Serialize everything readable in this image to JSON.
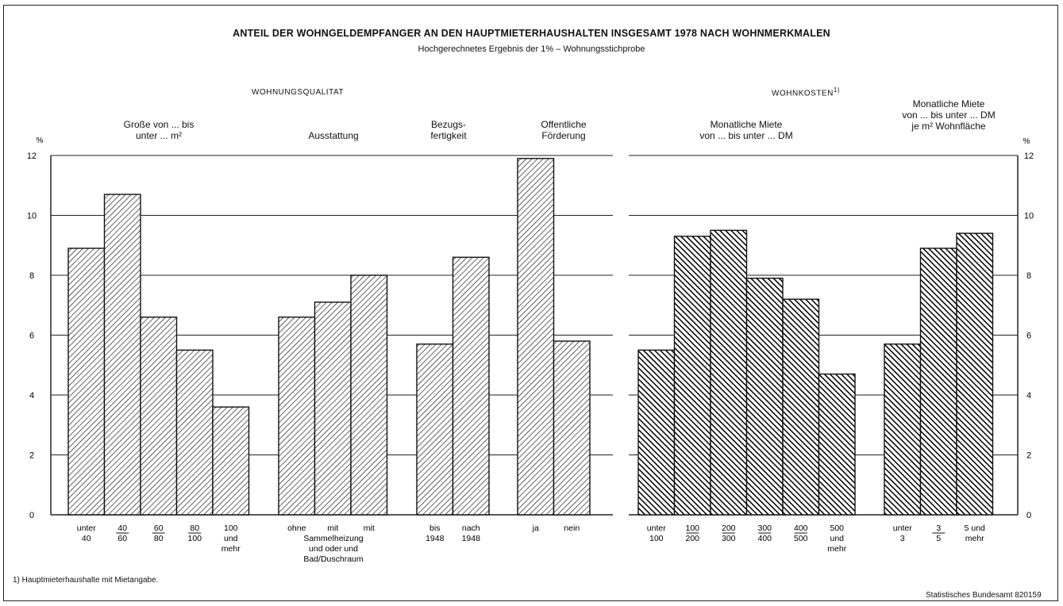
{
  "title": "ANTEIL DER WOHNGELDEMPFANGER AN DEN HAUPTMIETERHAUSHALTEN INSGESAMT 1978 NACH WOHNMERKMALEN",
  "subtitle": "Hochgerechnetes Ergebnis der 1% – Wohnungsstichprobe",
  "footnote": "1) Hauptmieterhaushalte mit Mietangabe.",
  "source": "Statistisches Bundesamt 820159",
  "axis_unit": "%",
  "colors": {
    "hatch_light": "#111111",
    "hatch_dark": "#000000",
    "background": "#ffffff"
  },
  "sections": {
    "left": "WOHNUNGSQUALITAT",
    "right": "WOHNKOSTEN",
    "right_sup": "1)"
  },
  "groups": {
    "g1": [
      "Große von ... bis",
      "unter ... m²"
    ],
    "g2": [
      "Ausstattung"
    ],
    "g3": [
      "Bezugs-",
      "fertigkeit"
    ],
    "g4": [
      "Offentliche",
      "Förderung"
    ],
    "g5": [
      "Monatliche Miete",
      "von ... bis unter ... DM"
    ],
    "g6": [
      "Monatliche Miete",
      "von ... bis unter ... DM",
      "je m² Wohnfläche"
    ]
  },
  "chart_data": [
    {
      "type": "bar",
      "panel": "WOHNUNGSQUALITAT",
      "ylabel": "%",
      "ylim": [
        0,
        12
      ],
      "yticks": [
        0,
        2,
        4,
        6,
        8,
        10,
        12
      ],
      "grid": true,
      "groups": [
        {
          "name": "Große von ... bis unter ... m²",
          "categories": [
            "unter 40",
            "40 – 60",
            "60 – 80",
            "80 – 100",
            "100 und mehr"
          ],
          "values": [
            8.9,
            10.7,
            6.6,
            5.5,
            3.6
          ]
        },
        {
          "name": "Ausstattung",
          "categories": [
            "ohne Sammelheizung und Bad/Duschraum",
            "mit Sammelheizung oder Bad/Duschraum",
            "mit Sammelheizung und Bad/Duschraum"
          ],
          "values": [
            6.6,
            7.1,
            8.0
          ]
        },
        {
          "name": "Bezugsfertigkeit",
          "categories": [
            "bis 1948",
            "nach 1948"
          ],
          "values": [
            5.7,
            8.6
          ]
        },
        {
          "name": "Offentliche Förderung",
          "categories": [
            "ja",
            "nein"
          ],
          "values": [
            11.9,
            5.8
          ]
        }
      ]
    },
    {
      "type": "bar",
      "panel": "WOHNKOSTEN",
      "ylabel": "%",
      "ylim": [
        0,
        12
      ],
      "yticks": [
        0,
        2,
        4,
        6,
        8,
        10,
        12
      ],
      "grid": true,
      "groups": [
        {
          "name": "Monatliche Miete von ... bis unter ... DM",
          "categories": [
            "unter 100",
            "100 – 200",
            "200 – 300",
            "300 – 400",
            "400 – 500",
            "500 und mehr"
          ],
          "values": [
            5.5,
            9.3,
            9.5,
            7.9,
            7.2,
            4.7
          ]
        },
        {
          "name": "Monatliche Miete von ... bis unter ... DM je m² Wohnfläche",
          "categories": [
            "unter 3",
            "3 – 5",
            "5 und mehr"
          ],
          "values": [
            5.7,
            8.9,
            9.4
          ]
        }
      ]
    }
  ],
  "tick_labels": {
    "left": [
      [
        "unter",
        "40"
      ],
      [
        "40",
        "60"
      ],
      [
        "60",
        "80"
      ],
      [
        "80",
        "100"
      ],
      [
        "100",
        "und",
        "mehr"
      ],
      [
        "ohne"
      ],
      [
        "mit"
      ],
      [
        "mit"
      ],
      [
        "bis",
        "1948"
      ],
      [
        "nach",
        "1948"
      ],
      [
        "ja"
      ],
      [
        "nein"
      ]
    ],
    "ausstattung_extra": [
      "Sammelheizung",
      "und   oder   und",
      "Bad/Duschraum"
    ],
    "right": [
      [
        "unter",
        "100"
      ],
      [
        "100",
        "200"
      ],
      [
        "200",
        "300"
      ],
      [
        "300",
        "400"
      ],
      [
        "400",
        "500"
      ],
      [
        "500",
        "und",
        "mehr"
      ],
      [
        "unter",
        "3"
      ],
      [
        "3",
        "5"
      ],
      [
        "5 und",
        "mehr"
      ]
    ]
  }
}
